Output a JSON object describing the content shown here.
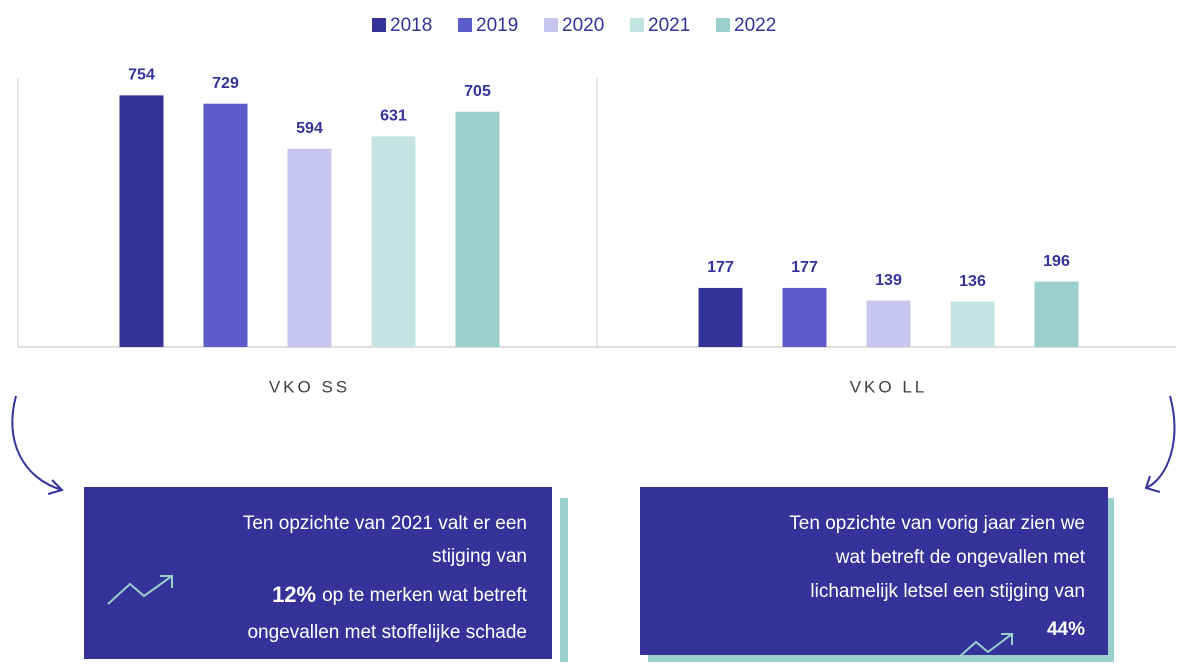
{
  "chart_data": {
    "type": "bar",
    "categories": [
      "VKO SS",
      "VKO LL"
    ],
    "series": [
      {
        "name": "2018",
        "color": "#35339a",
        "values": [
          754,
          177
        ]
      },
      {
        "name": "2019",
        "color": "#5b5bc9",
        "values": [
          729,
          177
        ]
      },
      {
        "name": "2020",
        "color": "#c8c6ee",
        "values": [
          594,
          139
        ]
      },
      {
        "name": "2021",
        "color": "#c4e4e2",
        "values": [
          631,
          136
        ]
      },
      {
        "name": "2022",
        "color": "#99cfcd",
        "values": [
          705,
          196
        ]
      }
    ],
    "ylim": [
      0,
      800
    ],
    "legend": "top"
  },
  "annotations": [
    {
      "lines": [
        "Ten opzichte van 2021 valt er een",
        "stijging van"
      ],
      "highlight": "12%",
      "after": [
        "op te merken wat betreft",
        "ongevallen met stoffelijke schade"
      ]
    },
    {
      "lines": [
        "Ten opzichte van vorig jaar zien we",
        "wat betreft de ongevallen met",
        "lichamelijk letsel een stijging van"
      ],
      "highlight": "44%"
    }
  ]
}
